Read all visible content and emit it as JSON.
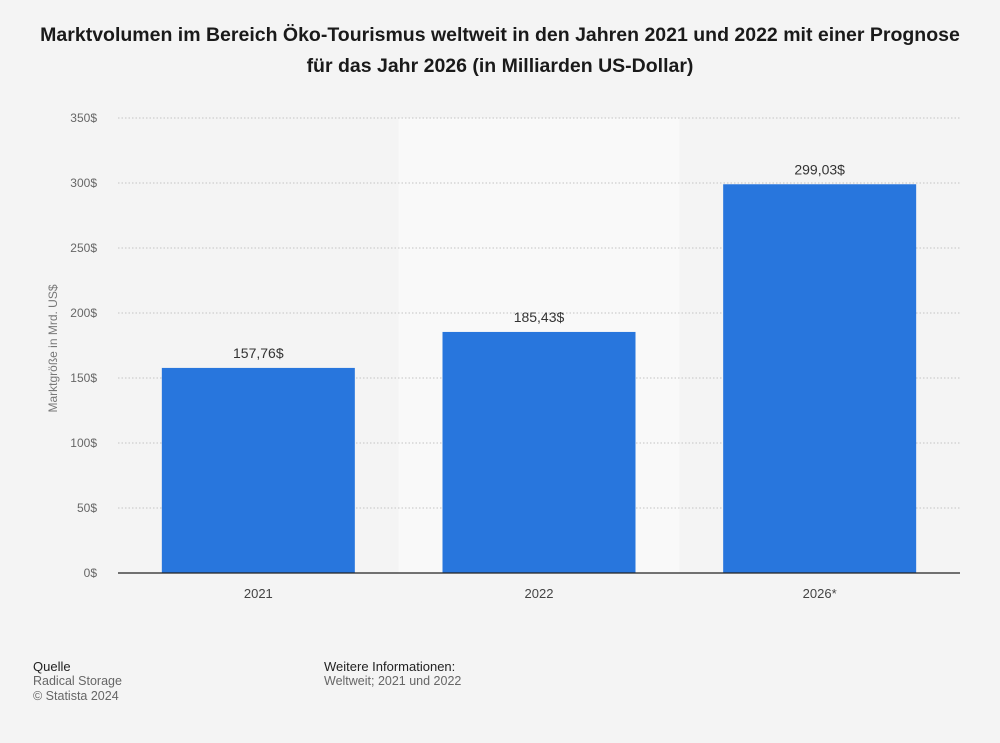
{
  "chart_data": {
    "type": "bar",
    "title": "Marktvolumen im Bereich Öko-Tourismus weltweit in den Jahren 2021 und 2022 mit einer Prognose für das Jahr 2026 (in Milliarden US-Dollar)",
    "categories": [
      "2021",
      "2022",
      "2026*"
    ],
    "values": [
      157.76,
      185.43,
      299.03
    ],
    "value_labels": [
      "157,76$",
      "185,43$",
      "299,03$"
    ],
    "ylabel": "Marktgröße in Mrd. US$",
    "xlabel": "",
    "ylim": [
      0,
      350
    ],
    "yticks": [
      0,
      50,
      100,
      150,
      200,
      250,
      300,
      350
    ],
    "ytick_labels": [
      "0$",
      "50$",
      "100$",
      "150$",
      "200$",
      "250$",
      "300$",
      "350$"
    ],
    "highlighted_category": "2022",
    "grid": true,
    "bar_color": "#2876dd"
  },
  "footer": {
    "source_heading": "Quelle",
    "source_lines": [
      "Radical Storage",
      "© Statista 2024"
    ],
    "info_heading": "Weitere Informationen:",
    "info_lines": [
      "Weltweit; 2021 und 2022"
    ]
  }
}
